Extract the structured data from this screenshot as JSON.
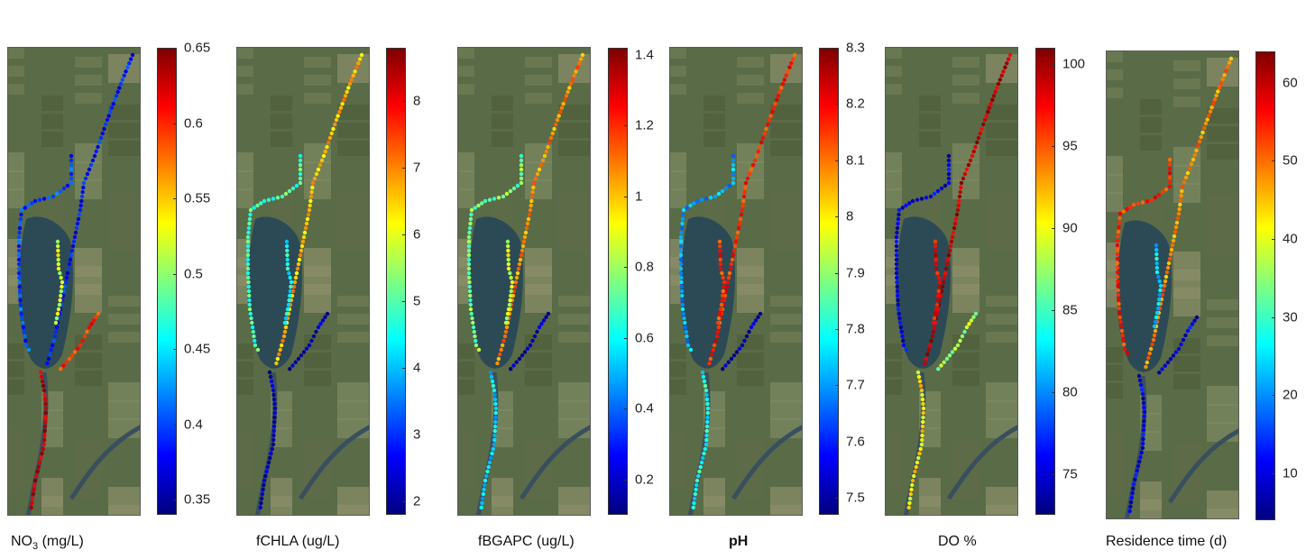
{
  "panels": [
    {
      "id": "no3",
      "label_main": "NO",
      "label_sub": "3",
      "label_rest": " (mg/L)",
      "ticks": [
        "0.65",
        "0.6",
        "0.55",
        "0.5",
        "0.45",
        "0.4",
        "0.35"
      ],
      "tick_values": [
        0.65,
        0.6,
        0.55,
        0.5,
        0.45,
        0.4,
        0.35
      ],
      "range": [
        0.34,
        0.65
      ]
    },
    {
      "id": "fchla",
      "label_main": "fCHLA (ug/L)",
      "label_sub": "",
      "label_rest": "",
      "ticks": [
        "8",
        "7",
        "6",
        "5",
        "4",
        "3",
        "2"
      ],
      "tick_values": [
        8,
        7,
        6,
        5,
        4,
        3,
        2
      ],
      "range": [
        1.8,
        8.8
      ]
    },
    {
      "id": "fbgapc",
      "label_main": "fBGAPC (ug/L)",
      "label_sub": "",
      "label_rest": "",
      "ticks": [
        "1.4",
        "1.2",
        "1",
        "0.8",
        "0.6",
        "0.4",
        "0.2"
      ],
      "tick_values": [
        1.4,
        1.2,
        1.0,
        0.8,
        0.6,
        0.4,
        0.2
      ],
      "range": [
        0.1,
        1.42
      ]
    },
    {
      "id": "ph",
      "label_main": "pH",
      "label_sub": "",
      "label_rest": "",
      "ticks": [
        "8.3",
        "8.2",
        "8.1",
        "8",
        "7.9",
        "7.8",
        "7.7",
        "7.6",
        "7.5"
      ],
      "tick_values": [
        8.3,
        8.2,
        8.1,
        8.0,
        7.9,
        7.8,
        7.7,
        7.6,
        7.5
      ],
      "range": [
        7.47,
        8.3
      ]
    },
    {
      "id": "do",
      "label_main": "DO %",
      "label_sub": "",
      "label_rest": "",
      "ticks": [
        "100",
        "95",
        "90",
        "85",
        "80",
        "75"
      ],
      "tick_values": [
        100,
        95,
        90,
        85,
        80,
        75
      ],
      "range": [
        72.5,
        101
      ]
    },
    {
      "id": "rt",
      "label_main": "Residence time (d)",
      "label_sub": "",
      "label_rest": "",
      "ticks": [
        "60",
        "50",
        "40",
        "30",
        "20",
        "10"
      ],
      "tick_values": [
        60,
        50,
        40,
        30,
        20,
        10
      ],
      "range": [
        4,
        64
      ]
    }
  ],
  "colors": {
    "map_base": "#5a6b48",
    "water": "#2c4a55",
    "river": "#3a4f5e"
  }
}
